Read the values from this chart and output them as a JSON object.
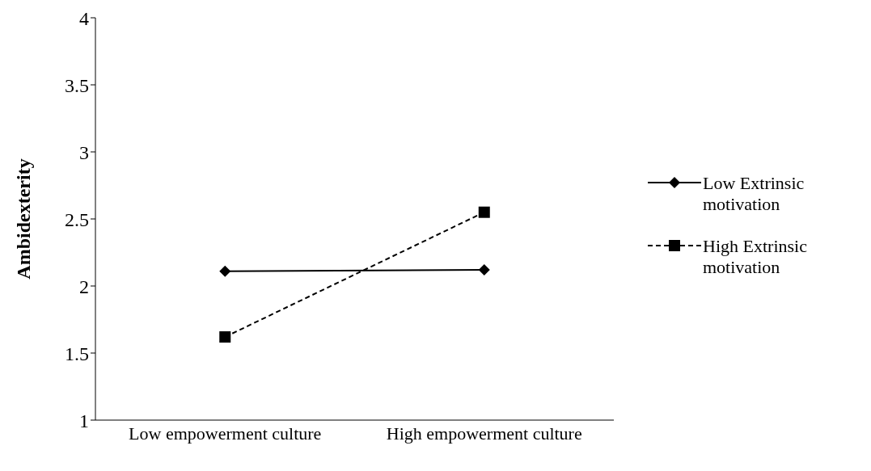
{
  "chart_data": {
    "type": "line",
    "ylabel": "Ambidexterity",
    "categories": [
      "Low empowerment culture",
      "High empowerment culture"
    ],
    "series": [
      {
        "name": "Low Extrinsic motivation",
        "color": "#000000",
        "values": [
          2.11,
          2.12
        ],
        "marker": "diamond",
        "line_style": "solid"
      },
      {
        "name": "High Extrinsic motivation",
        "color": "#000000",
        "values": [
          1.62,
          2.55
        ],
        "marker": "square",
        "line_style": "dashed"
      }
    ],
    "ylim": [
      1,
      4
    ],
    "yticks": [
      1,
      1.5,
      2,
      2.5,
      3,
      3.5,
      4
    ],
    "grid": false,
    "legend": "right"
  }
}
